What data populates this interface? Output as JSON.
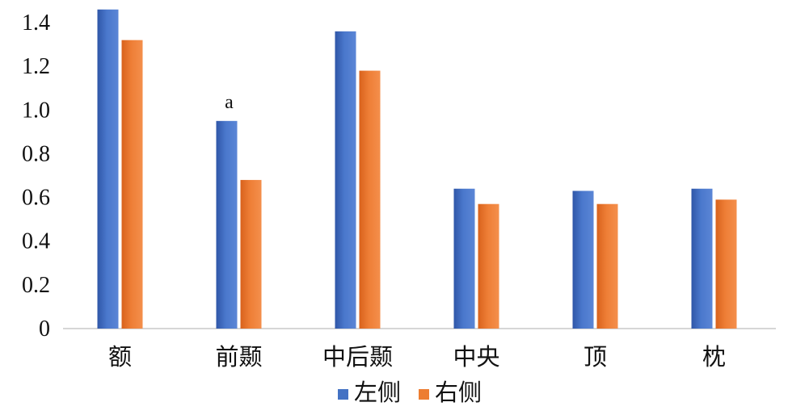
{
  "chart_data": {
    "type": "bar",
    "categories": [
      "额",
      "前颞",
      "中后颞",
      "中央",
      "顶",
      "枕"
    ],
    "series": [
      {
        "name": "左侧",
        "color": "#4472C4",
        "values": [
          1.46,
          0.95,
          1.36,
          0.64,
          0.63,
          0.64
        ]
      },
      {
        "name": "右侧",
        "color": "#ED7D31",
        "values": [
          1.32,
          0.68,
          1.18,
          0.57,
          0.57,
          0.59
        ]
      }
    ],
    "ylim": [
      0,
      1.4
    ],
    "yticks": [
      "0",
      "0.2",
      "0.4",
      "0.6",
      "0.8",
      "1.0",
      "1.2",
      "1.4"
    ],
    "annotations": [
      {
        "category": "前颞",
        "series": "左侧",
        "text": "a"
      }
    ],
    "grid": false,
    "legend_position": "bottom"
  }
}
